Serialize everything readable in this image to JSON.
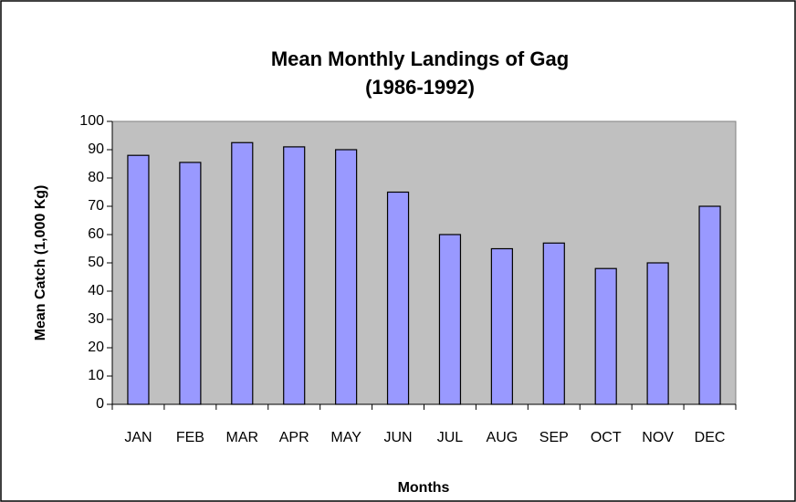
{
  "chart_data": {
    "type": "bar",
    "title": "Mean Monthly Landings of Gag",
    "subtitle": "(1986-1992)",
    "x_label": "Months",
    "y_label": "Mean Catch (1,000 Kg)",
    "categories": [
      "JAN",
      "FEB",
      "MAR",
      "APR",
      "MAY",
      "JUN",
      "JUL",
      "AUG",
      "SEP",
      "OCT",
      "NOV",
      "DEC"
    ],
    "values": [
      88,
      85.5,
      92.5,
      91,
      90,
      75,
      60,
      55,
      57,
      48,
      50,
      70
    ],
    "color": "#9999ff",
    "plot_background": "#c0c0c0",
    "ylim": [
      0,
      100
    ],
    "yticks": [
      0,
      10,
      20,
      30,
      40,
      50,
      60,
      70,
      80,
      90,
      100
    ],
    "grid": false
  }
}
